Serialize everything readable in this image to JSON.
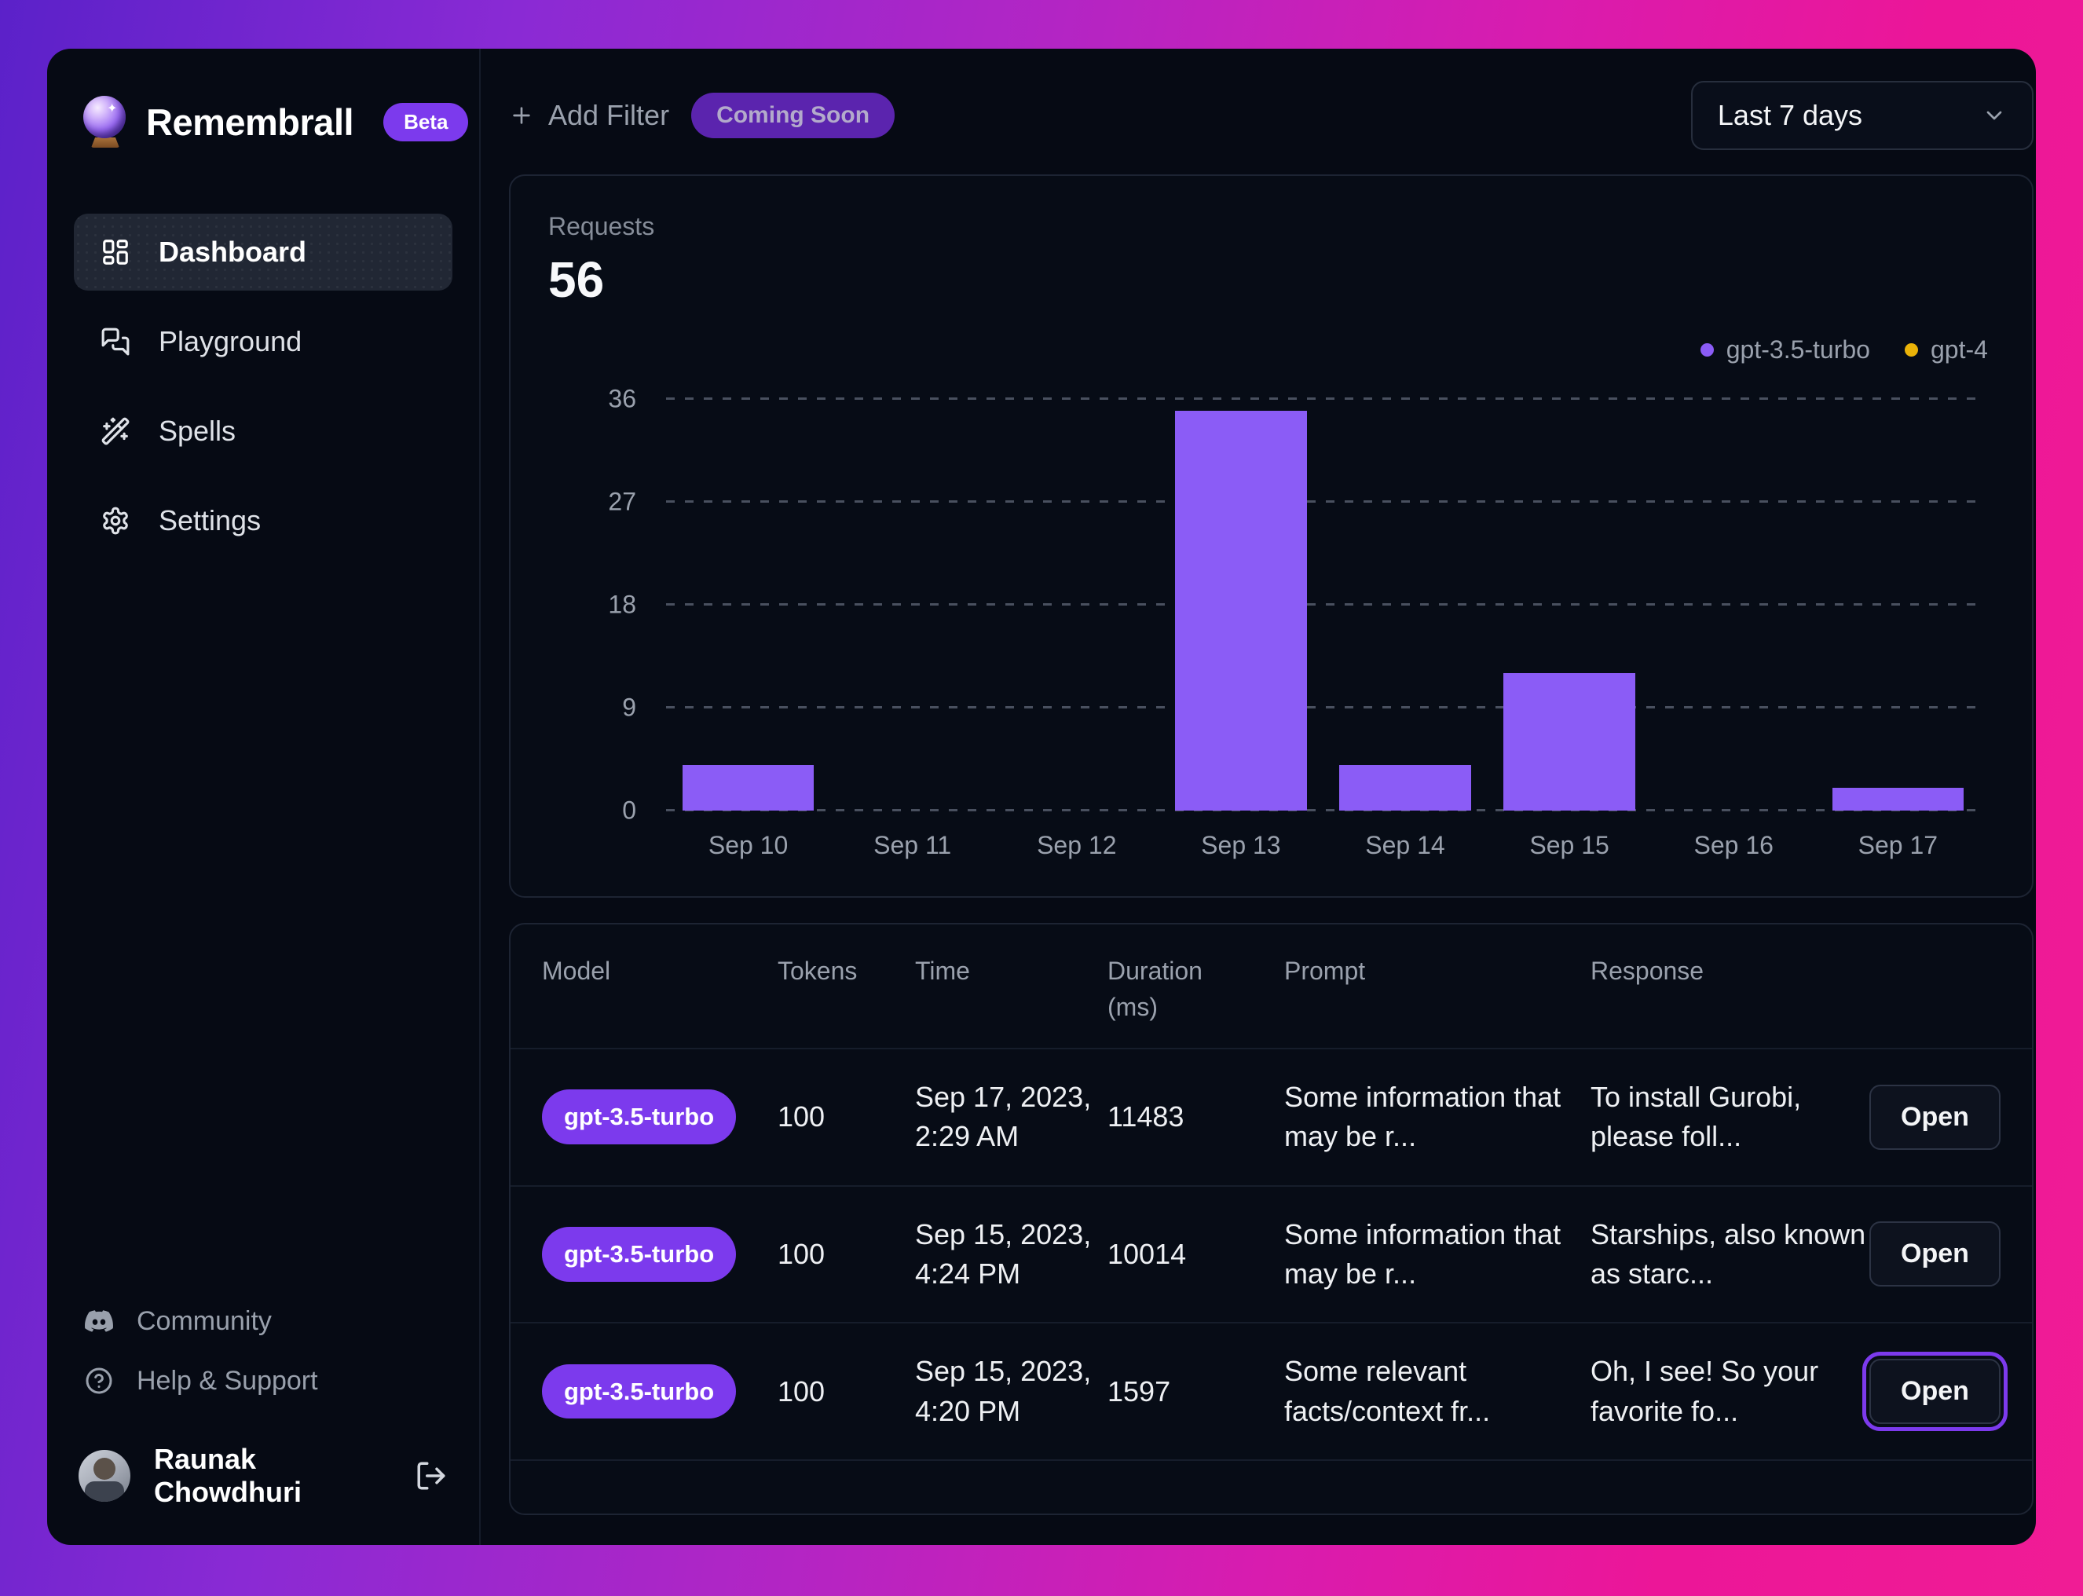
{
  "brand": {
    "name": "Remembrall",
    "badge": "Beta"
  },
  "sidebar": {
    "items": [
      {
        "label": "Dashboard",
        "icon": "dashboard-icon",
        "active": true
      },
      {
        "label": "Playground",
        "icon": "playground-icon",
        "active": false
      },
      {
        "label": "Spells",
        "icon": "wand-icon",
        "active": false
      },
      {
        "label": "Settings",
        "icon": "gear-icon",
        "active": false
      }
    ],
    "footer_items": [
      {
        "label": "Community",
        "icon": "discord-icon"
      },
      {
        "label": "Help & Support",
        "icon": "help-icon"
      }
    ],
    "user": {
      "name": "Raunak Chowdhuri"
    }
  },
  "topbar": {
    "add_filter_label": "Add Filter",
    "coming_soon_label": "Coming Soon",
    "date_range": "Last 7 days"
  },
  "chart_data": {
    "type": "bar",
    "title": "Requests",
    "total": "56",
    "categories": [
      "Sep 10",
      "Sep 11",
      "Sep 12",
      "Sep 13",
      "Sep 14",
      "Sep 15",
      "Sep 16",
      "Sep 17"
    ],
    "series": [
      {
        "name": "gpt-3.5-turbo",
        "color": "#8b5cf6",
        "values": [
          4,
          0,
          0,
          35,
          4,
          12,
          0,
          2
        ]
      },
      {
        "name": "gpt-4",
        "color": "#eab308",
        "values": [
          0,
          0,
          0,
          0,
          0,
          0,
          0,
          0
        ]
      }
    ],
    "ylim": [
      0,
      36
    ],
    "yticks": [
      0,
      9,
      18,
      27,
      36
    ],
    "grid": "dashed-horizontal",
    "legend_position": "top-right",
    "xlabel": "",
    "ylabel": ""
  },
  "table": {
    "columns": [
      "Model",
      "Tokens",
      "Time",
      "Duration (ms)",
      "Prompt",
      "Response"
    ],
    "rows": [
      {
        "model": "gpt-3.5-turbo",
        "tokens": "100",
        "time": "Sep 17, 2023, 2:29 AM",
        "duration": "11483",
        "prompt": "Some information that may be r...",
        "response": "To install Gurobi, please foll...",
        "action": "Open",
        "highlighted": false
      },
      {
        "model": "gpt-3.5-turbo",
        "tokens": "100",
        "time": "Sep 15, 2023, 4:24 PM",
        "duration": "10014",
        "prompt": "Some information that may be r...",
        "response": "Starships, also known as starc...",
        "action": "Open",
        "highlighted": false
      },
      {
        "model": "gpt-3.5-turbo",
        "tokens": "100",
        "time": "Sep 15, 2023, 4:20 PM",
        "duration": "1597",
        "prompt": "Some relevant facts/context fr...",
        "response": "Oh, I see! So your favorite fo...",
        "action": "Open",
        "highlighted": true
      }
    ]
  },
  "colors": {
    "accent": "#7c3aed",
    "bar_gpt35": "#8b5cf6",
    "bar_gpt4": "#eab308",
    "window_bg": "#060a14",
    "muted_text": "#9aa1ad"
  }
}
